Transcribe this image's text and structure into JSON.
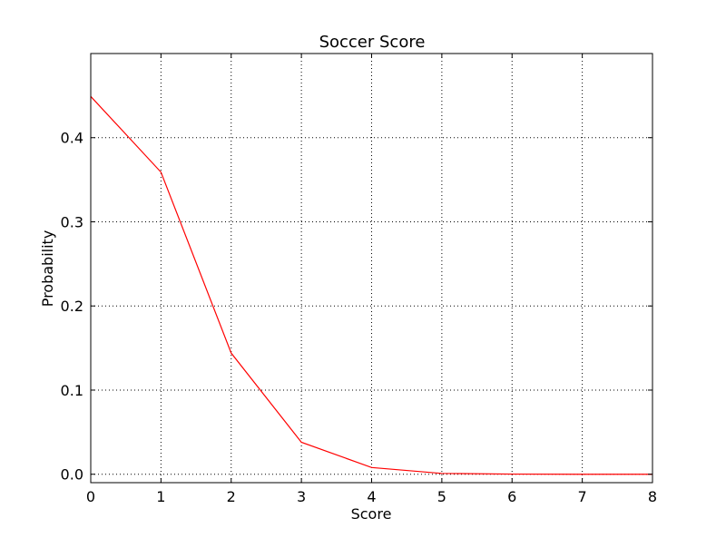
{
  "chart_data": {
    "type": "line",
    "title": "Soccer Score",
    "xlabel": "Score",
    "ylabel": "Probability",
    "xlim": [
      0,
      8
    ],
    "ylim": [
      -0.01,
      0.5
    ],
    "xticks": [
      0,
      1,
      2,
      3,
      4,
      5,
      6,
      7,
      8
    ],
    "xtick_labels": [
      "0",
      "1",
      "2",
      "3",
      "4",
      "5",
      "6",
      "7",
      "8"
    ],
    "yticks": [
      0.0,
      0.1,
      0.2,
      0.3,
      0.4
    ],
    "ytick_labels": [
      "0.0",
      "0.1",
      "0.2",
      "0.3",
      "0.4"
    ],
    "grid": true,
    "series": [
      {
        "color": "#ff0000",
        "x": [
          0,
          1,
          2,
          3,
          4,
          5,
          6,
          7,
          8
        ],
        "y": [
          0.449,
          0.359,
          0.144,
          0.038,
          0.008,
          0.001,
          0.0002,
          0.0,
          0.0
        ]
      }
    ]
  }
}
